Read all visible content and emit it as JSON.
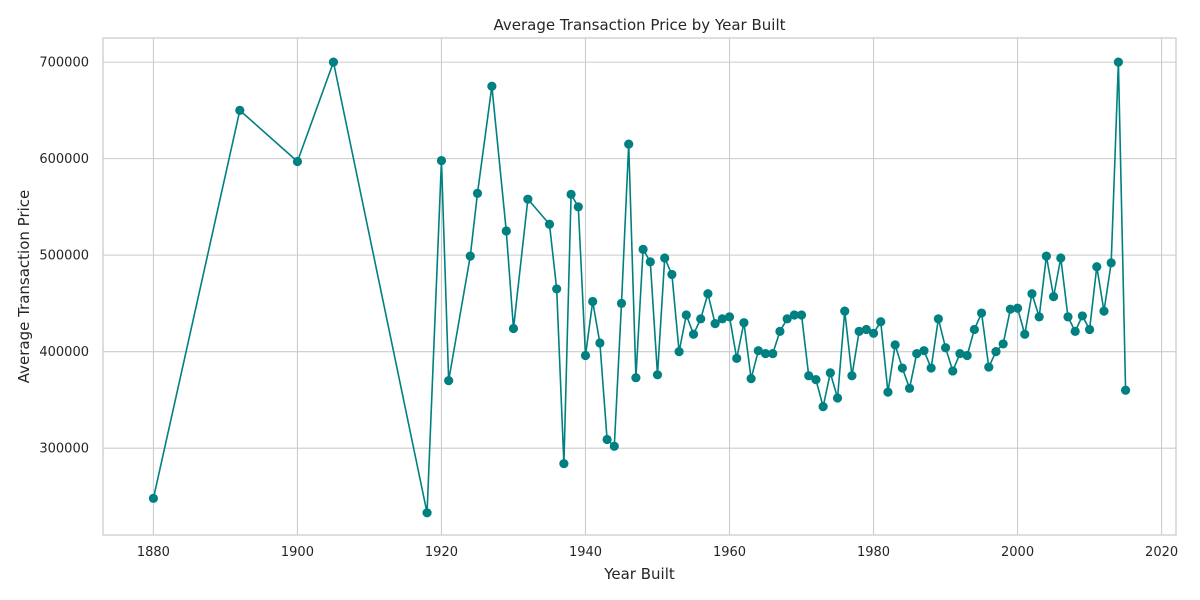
{
  "chart_data": {
    "type": "line",
    "title": "Average Transaction Price by Year Built",
    "xlabel": "Year Built",
    "ylabel": "Average Transaction Price",
    "xlim": [
      1873,
      2022
    ],
    "ylim": [
      210000,
      725000
    ],
    "xticks": [
      1880,
      1900,
      1920,
      1940,
      1960,
      1980,
      2000,
      2020
    ],
    "yticks": [
      300000,
      400000,
      500000,
      600000,
      700000
    ],
    "grid": true,
    "colors": {
      "series": "#008080",
      "grid": "#cccccc",
      "frame": "#cccccc"
    },
    "series": [
      {
        "marker": "circle",
        "x": [
          1880,
          1892,
          1900,
          1905,
          1918,
          1920,
          1921,
          1924,
          1925,
          1927,
          1929,
          1930,
          1932,
          1935,
          1936,
          1937,
          1938,
          1939,
          1940,
          1941,
          1942,
          1943,
          1944,
          1945,
          1946,
          1947,
          1948,
          1949,
          1950,
          1951,
          1952,
          1953,
          1954,
          1955,
          1956,
          1957,
          1958,
          1959,
          1960,
          1961,
          1962,
          1963,
          1964,
          1965,
          1966,
          1967,
          1968,
          1969,
          1970,
          1971,
          1972,
          1973,
          1974,
          1975,
          1976,
          1977,
          1978,
          1979,
          1980,
          1981,
          1982,
          1983,
          1984,
          1985,
          1986,
          1987,
          1988,
          1989,
          1990,
          1991,
          1992,
          1993,
          1994,
          1995,
          1996,
          1997,
          1998,
          1999,
          2000,
          2001,
          2002,
          2003,
          2004,
          2005,
          2006,
          2007,
          2008,
          2009,
          2010,
          2011,
          2012,
          2013,
          2014,
          2015
        ],
        "y": [
          248000,
          650000,
          597000,
          700000,
          233000,
          598000,
          370000,
          499000,
          564000,
          675000,
          525000,
          424000,
          558000,
          532000,
          465000,
          284000,
          563000,
          550000,
          396000,
          452000,
          409000,
          309000,
          302000,
          450000,
          615000,
          373000,
          506000,
          493000,
          376000,
          497000,
          480000,
          400000,
          438000,
          418000,
          434000,
          460000,
          429000,
          434000,
          436000,
          393000,
          430000,
          372000,
          401000,
          398000,
          398000,
          421000,
          434000,
          438000,
          438000,
          375000,
          371000,
          343000,
          378000,
          352000,
          442000,
          375000,
          421000,
          423000,
          419000,
          431000,
          358000,
          407000,
          383000,
          362000,
          398000,
          401000,
          383000,
          434000,
          404000,
          380000,
          398000,
          396000,
          423000,
          440000,
          384000,
          400000,
          408000,
          444000,
          445000,
          418000,
          460000,
          436000,
          499000,
          457000,
          497000,
          436000,
          421000,
          437000,
          423000,
          488000,
          442000,
          492000,
          700000,
          360000
        ]
      }
    ]
  }
}
